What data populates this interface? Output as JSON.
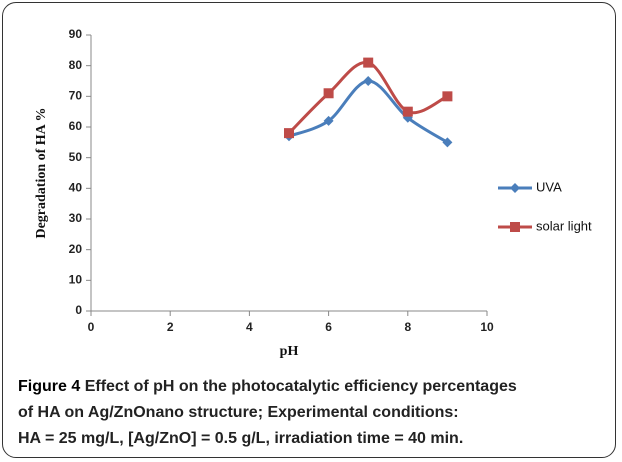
{
  "chart_data": {
    "type": "line",
    "x_label": "pH",
    "y_label": "Degradation of HA %",
    "x": [
      5,
      6,
      7,
      8,
      9
    ],
    "series": [
      {
        "name": "UVA",
        "color": "#4a7ebb",
        "marker": "diamond",
        "values": [
          57,
          62,
          75,
          63,
          55
        ]
      },
      {
        "name": "solar light",
        "color": "#be4b48",
        "marker": "square",
        "values": [
          58,
          71,
          81,
          65,
          70
        ]
      }
    ],
    "xlim": [
      0,
      10
    ],
    "xticks": [
      0,
      2,
      4,
      6,
      8,
      10
    ],
    "ylim": [
      0,
      90
    ],
    "yticks": [
      0,
      10,
      20,
      30,
      40,
      50,
      60,
      70,
      80,
      90
    ],
    "smooth": true,
    "grid": false,
    "legend": "right",
    "caption_label": "Figure 4",
    "caption_lines": [
      "Effect of pH on the photocatalytic efficiency percentages",
      "of HA on Ag/ZnOnano structure; Experimental conditions:",
      "HA = 25 mg/L, [Ag/ZnO] = 0.5 g/L, irradiation time = 40 min."
    ]
  }
}
